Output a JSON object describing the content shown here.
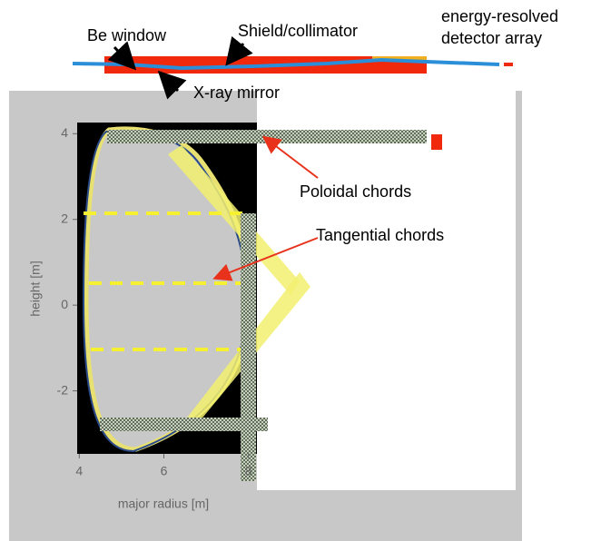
{
  "header": {
    "detector_label": [
      "energy-resolved",
      "detector array"
    ],
    "be_window": "Be window",
    "shield": "Shield/collimator",
    "mirror": "X-ray mirror"
  },
  "annotations": {
    "poloidal": "Poloidal chords",
    "tangential": "Tangential chords"
  },
  "plot": {
    "xlabel": "major radius [m]",
    "ylabel": "height [m]",
    "xticks": [
      4,
      6,
      8
    ],
    "yticks": [
      4,
      2,
      0,
      -2
    ],
    "xlim": [
      3.95,
      8.2
    ],
    "ylim": [
      -3.47,
      4.26
    ]
  }
}
